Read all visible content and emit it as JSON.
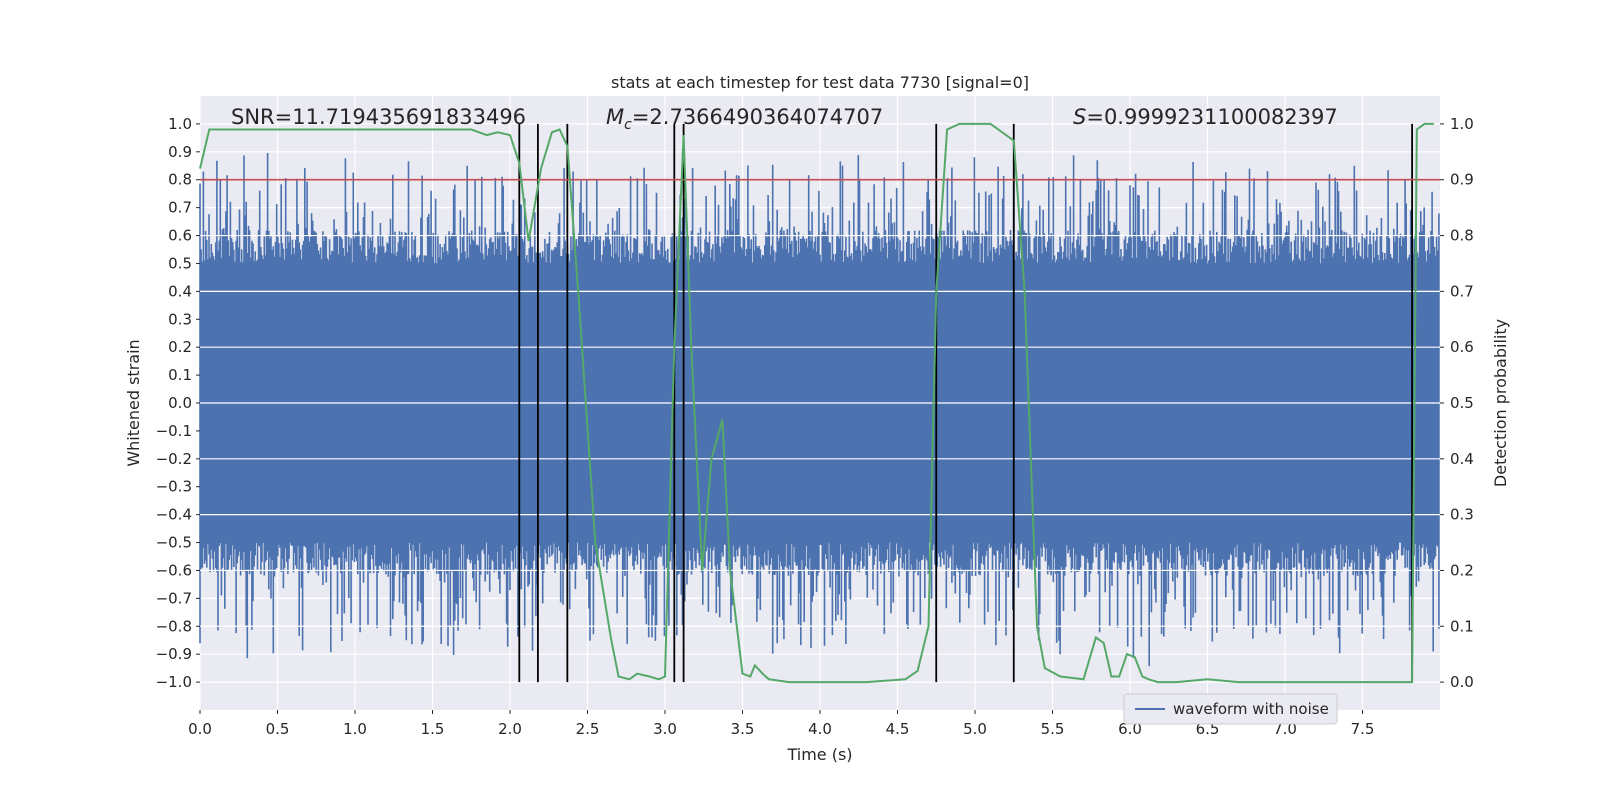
{
  "chart_data": {
    "type": "line",
    "title": "stats at each timestep for test data 7730 [signal=0]",
    "xlabel": "Time (s)",
    "ylabel": "Whitened strain",
    "y2label": "Detection probability",
    "xlim": [
      0.0,
      8.0
    ],
    "ylim": [
      -1.1,
      1.1
    ],
    "y2lim": [
      -0.05,
      1.05
    ],
    "xticks": [
      0.0,
      0.5,
      1.0,
      1.5,
      2.0,
      2.5,
      3.0,
      3.5,
      4.0,
      4.5,
      5.0,
      5.5,
      6.0,
      6.5,
      7.0,
      7.5
    ],
    "xtick_labels": [
      "0.0",
      "0.5",
      "1.0",
      "1.5",
      "2.0",
      "2.5",
      "3.0",
      "3.5",
      "4.0",
      "4.5",
      "5.0",
      "5.5",
      "6.0",
      "6.5",
      "7.0",
      "7.5"
    ],
    "yticks": [
      1.0,
      0.9,
      0.8,
      0.7,
      0.6,
      0.5,
      0.4,
      0.3,
      0.2,
      0.1,
      0.0,
      -0.1,
      -0.2,
      -0.3,
      -0.4,
      -0.5,
      -0.6,
      -0.7,
      -0.8,
      -0.9,
      -1.0
    ],
    "ytick_labels": [
      "1.0",
      "0.9",
      "0.8",
      "0.7",
      "0.6",
      "0.5",
      "0.4",
      "0.3",
      "0.2",
      "0.1",
      "0.0",
      "−0.1",
      "−0.2",
      "−0.3",
      "−0.4",
      "−0.5",
      "−0.6",
      "−0.7",
      "−0.8",
      "−0.9",
      "−1.0"
    ],
    "y2ticks": [
      1.0,
      0.9,
      0.8,
      0.7,
      0.6,
      0.5,
      0.4,
      0.3,
      0.2,
      0.1,
      0.0
    ],
    "y2tick_labels": [
      "1.0",
      "0.9",
      "0.8",
      "0.7",
      "0.6",
      "0.5",
      "0.4",
      "0.3",
      "0.2",
      "0.1",
      "0.0"
    ],
    "annotations": {
      "snr": "SNR=11.719435691833496",
      "mc_label": "M",
      "mc_sub": "c",
      "mc_value": "=2.7366490364074707",
      "s_label": "S",
      "s_value": "=0.9999231100082397"
    },
    "threshold": {
      "value": 0.9,
      "axis": "y2",
      "color": "#c44e52"
    },
    "vertical_lines": [
      2.06,
      2.18,
      2.37,
      3.06,
      3.12,
      4.75,
      5.25,
      7.82
    ],
    "legend": {
      "entries": [
        "waveform with noise"
      ],
      "location": "lower right"
    },
    "series": [
      {
        "name": "waveform with noise",
        "axis": "y",
        "color": "#4c72b0",
        "kind": "noise",
        "envelope": {
          "typical_peak": 0.6,
          "max_peak": 0.9,
          "min_peak": -0.95
        }
      },
      {
        "name": "detection probability",
        "axis": "y2",
        "color": "#55a868",
        "x": [
          0.0,
          0.06,
          0.5,
          1.0,
          1.5,
          1.75,
          1.85,
          1.92,
          2.0,
          2.06,
          2.12,
          2.2,
          2.27,
          2.32,
          2.37,
          2.44,
          2.55,
          2.65,
          2.7,
          2.77,
          2.82,
          2.9,
          2.96,
          3.0,
          3.06,
          3.12,
          3.17,
          3.24,
          3.3,
          3.37,
          3.42,
          3.5,
          3.55,
          3.58,
          3.63,
          3.67,
          3.8,
          4.0,
          4.3,
          4.55,
          4.63,
          4.7,
          4.75,
          4.82,
          4.9,
          5.0,
          5.1,
          5.15,
          5.25,
          5.32,
          5.4,
          5.45,
          5.55,
          5.7,
          5.78,
          5.83,
          5.88,
          5.93,
          5.98,
          6.03,
          6.08,
          6.12,
          6.18,
          6.3,
          6.5,
          6.7,
          6.9,
          7.1,
          7.3,
          7.5,
          7.7,
          7.82,
          7.85,
          7.9,
          7.96
        ],
        "values": [
          0.92,
          0.99,
          0.99,
          0.99,
          0.99,
          0.99,
          0.98,
          0.985,
          0.98,
          0.93,
          0.79,
          0.92,
          0.985,
          0.99,
          0.96,
          0.7,
          0.25,
          0.08,
          0.01,
          0.005,
          0.015,
          0.01,
          0.005,
          0.01,
          0.6,
          0.98,
          0.6,
          0.2,
          0.4,
          0.47,
          0.2,
          0.015,
          0.01,
          0.03,
          0.015,
          0.005,
          0.0,
          0.0,
          0.0,
          0.005,
          0.02,
          0.1,
          0.7,
          0.99,
          1.0,
          1.0,
          1.0,
          0.99,
          0.97,
          0.7,
          0.1,
          0.025,
          0.01,
          0.005,
          0.08,
          0.07,
          0.01,
          0.01,
          0.05,
          0.045,
          0.01,
          0.005,
          0.0,
          0.0,
          0.005,
          0.0,
          0.0,
          0.0,
          0.0,
          0.0,
          0.0,
          0.0,
          0.99,
          1.0,
          1.0
        ]
      }
    ]
  }
}
